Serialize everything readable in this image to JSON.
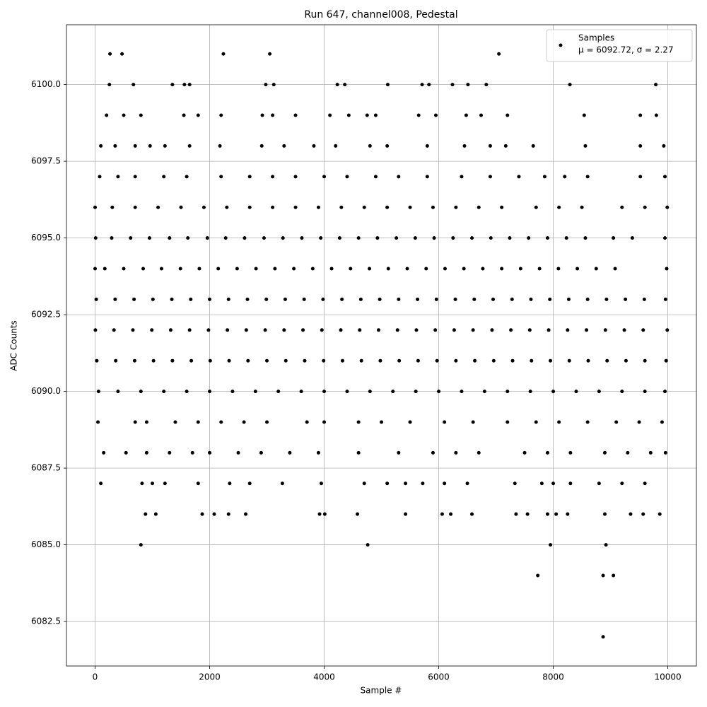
{
  "chart_data": {
    "type": "scatter",
    "title": "Run 647, channel008, Pedestal",
    "x_label": "Sample #",
    "y_label": "ADC Counts",
    "xlim": [
      -500,
      10499
    ],
    "ylim": [
      6081.05,
      6101.95
    ],
    "xticks": [
      0,
      2000,
      4000,
      6000,
      8000,
      10000
    ],
    "yticks": [
      6082.5,
      {
        "value": 6085,
        "label": "6085.0"
      },
      6087.5,
      {
        "value": 6090,
        "label": "6090.0"
      },
      6092.5,
      {
        "value": 6095,
        "label": "6095.0"
      },
      6097.5,
      {
        "value": 6100,
        "label": "6100.0"
      }
    ],
    "grid": true,
    "legend": "upper right",
    "legend_stats": "μ = 6092.72, σ = 2.27",
    "x": [
      10,
      290,
      620,
      950,
      1300,
      1620,
      1960,
      2280,
      2610,
      2950,
      3280,
      3610,
      3940,
      4270,
      4600,
      4930,
      5260,
      5590,
      5920,
      6250,
      6580,
      6910,
      7240,
      7570,
      7900,
      8230,
      8560,
      9050,
      9380,
      9950,
      0,
      170,
      500,
      840,
      1160,
      1490,
      1820,
      2150,
      2480,
      2810,
      3140,
      3470,
      3800,
      4130,
      4460,
      4790,
      5120,
      5450,
      5780,
      6110,
      6440,
      6770,
      7100,
      7430,
      7760,
      8090,
      8420,
      8750,
      9080,
      9980,
      20,
      350,
      680,
      1010,
      1340,
      1670,
      2000,
      2330,
      2660,
      2990,
      3320,
      3650,
      3980,
      4310,
      4640,
      4970,
      5300,
      5630,
      5960,
      6290,
      6620,
      6950,
      7280,
      7610,
      7940,
      8270,
      8600,
      8930,
      9260,
      9590,
      9960,
      5,
      330,
      660,
      990,
      1320,
      1650,
      1980,
      2310,
      2640,
      2970,
      3300,
      3630,
      3960,
      4290,
      4620,
      4950,
      5280,
      5610,
      5940,
      6270,
      6600,
      6930,
      7260,
      7590,
      7920,
      8250,
      8580,
      8910,
      9240,
      9570,
      9990,
      30,
      360,
      690,
      1020,
      1350,
      1680,
      2010,
      2340,
      2670,
      3000,
      3330,
      3660,
      3990,
      4320,
      4650,
      4980,
      5310,
      5640,
      5970,
      6300,
      6630,
      6960,
      7290,
      7620,
      7950,
      8280,
      8610,
      8940,
      9270,
      9600,
      9970,
      60,
      400,
      800,
      1200,
      1600,
      2000,
      2400,
      2800,
      3200,
      3600,
      4000,
      4400,
      4800,
      5200,
      5600,
      6000,
      6400,
      6800,
      7200,
      7600,
      8000,
      8400,
      8800,
      9200,
      9600,
      9950,
      0,
      300,
      700,
      1100,
      1500,
      1900,
      2300,
      2700,
      3100,
      3500,
      3900,
      4300,
      4700,
      5100,
      5500,
      5900,
      6300,
      6700,
      7100,
      7700,
      8100,
      8500,
      9200,
      9600,
      9990,
      50,
      700,
      900,
      1400,
      1800,
      2200,
      2600,
      3000,
      3700,
      4000,
      4600,
      5000,
      5500,
      6100,
      6600,
      7200,
      7700,
      8100,
      8600,
      9100,
      9500,
      9900,
      80,
      400,
      700,
      1200,
      1600,
      2200,
      2700,
      3100,
      3500,
      4000,
      4400,
      4900,
      5300,
      5800,
      6400,
      6900,
      7400,
      7850,
      8200,
      8600,
      9520,
      9950,
      150,
      540,
      900,
      1300,
      1700,
      2000,
      2500,
      2900,
      3400,
      3900,
      4600,
      5300,
      5900,
      6300,
      6700,
      7500,
      7900,
      8300,
      8900,
      9300,
      9700,
      9960,
      100,
      350,
      700,
      960,
      1220,
      1650,
      2180,
      2910,
      3300,
      3820,
      4200,
      4800,
      5100,
      5800,
      6450,
      6900,
      7170,
      7650,
      8560,
      9520,
      9930,
      100,
      820,
      1000,
      1220,
      1800,
      2350,
      2700,
      3270,
      3950,
      4700,
      5100,
      5420,
      5720,
      6100,
      6500,
      7330,
      7800,
      8000,
      8300,
      8800,
      9200,
      9600,
      200,
      500,
      800,
      1550,
      1800,
      2200,
      2920,
      3100,
      3500,
      4100,
      4430,
      4750,
      4900,
      5650,
      5950,
      6480,
      6740,
      7200,
      8540,
      9520,
      9800,
      880,
      1060,
      1870,
      2080,
      2330,
      2630,
      3920,
      4010,
      4580,
      5420,
      6060,
      6210,
      6580,
      7350,
      7550,
      7900,
      8050,
      8250,
      8900,
      9350,
      9570,
      9860,
      250,
      670,
      1350,
      1560,
      1650,
      2980,
      3120,
      4230,
      4360,
      5110,
      5710,
      5830,
      6240,
      6510,
      6830,
      8290,
      9790,
      260,
      470,
      2240,
      3050,
      7050,
      800,
      4760,
      7950,
      8920,
      7730,
      8870,
      9050,
      8870
    ],
    "series": [
      {
        "name": "Samples",
        "color": "#000000",
        "values": [
          6095,
          6095,
          6095,
          6095,
          6095,
          6095,
          6095,
          6095,
          6095,
          6095,
          6095,
          6095,
          6095,
          6095,
          6095,
          6095,
          6095,
          6095,
          6095,
          6095,
          6095,
          6095,
          6095,
          6095,
          6095,
          6095,
          6095,
          6095,
          6095,
          6095,
          6094,
          6094,
          6094,
          6094,
          6094,
          6094,
          6094,
          6094,
          6094,
          6094,
          6094,
          6094,
          6094,
          6094,
          6094,
          6094,
          6094,
          6094,
          6094,
          6094,
          6094,
          6094,
          6094,
          6094,
          6094,
          6094,
          6094,
          6094,
          6094,
          6094,
          6093,
          6093,
          6093,
          6093,
          6093,
          6093,
          6093,
          6093,
          6093,
          6093,
          6093,
          6093,
          6093,
          6093,
          6093,
          6093,
          6093,
          6093,
          6093,
          6093,
          6093,
          6093,
          6093,
          6093,
          6093,
          6093,
          6093,
          6093,
          6093,
          6093,
          6093,
          6092,
          6092,
          6092,
          6092,
          6092,
          6092,
          6092,
          6092,
          6092,
          6092,
          6092,
          6092,
          6092,
          6092,
          6092,
          6092,
          6092,
          6092,
          6092,
          6092,
          6092,
          6092,
          6092,
          6092,
          6092,
          6092,
          6092,
          6092,
          6092,
          6092,
          6092,
          6091,
          6091,
          6091,
          6091,
          6091,
          6091,
          6091,
          6091,
          6091,
          6091,
          6091,
          6091,
          6091,
          6091,
          6091,
          6091,
          6091,
          6091,
          6091,
          6091,
          6091,
          6091,
          6091,
          6091,
          6091,
          6091,
          6091,
          6091,
          6091,
          6091,
          6091,
          6090,
          6090,
          6090,
          6090,
          6090,
          6090,
          6090,
          6090,
          6090,
          6090,
          6090,
          6090,
          6090,
          6090,
          6090,
          6090,
          6090,
          6090,
          6090,
          6090,
          6090,
          6090,
          6090,
          6090,
          6090,
          6090,
          6096,
          6096,
          6096,
          6096,
          6096,
          6096,
          6096,
          6096,
          6096,
          6096,
          6096,
          6096,
          6096,
          6096,
          6096,
          6096,
          6096,
          6096,
          6096,
          6096,
          6096,
          6096,
          6096,
          6096,
          6096,
          6089,
          6089,
          6089,
          6089,
          6089,
          6089,
          6089,
          6089,
          6089,
          6089,
          6089,
          6089,
          6089,
          6089,
          6089,
          6089,
          6089,
          6089,
          6089,
          6089,
          6089,
          6089,
          6097,
          6097,
          6097,
          6097,
          6097,
          6097,
          6097,
          6097,
          6097,
          6097,
          6097,
          6097,
          6097,
          6097,
          6097,
          6097,
          6097,
          6097,
          6097,
          6097,
          6097,
          6097,
          6088,
          6088,
          6088,
          6088,
          6088,
          6088,
          6088,
          6088,
          6088,
          6088,
          6088,
          6088,
          6088,
          6088,
          6088,
          6088,
          6088,
          6088,
          6088,
          6088,
          6088,
          6088,
          6098,
          6098,
          6098,
          6098,
          6098,
          6098,
          6098,
          6098,
          6098,
          6098,
          6098,
          6098,
          6098,
          6098,
          6098,
          6098,
          6098,
          6098,
          6098,
          6098,
          6098,
          6087,
          6087,
          6087,
          6087,
          6087,
          6087,
          6087,
          6087,
          6087,
          6087,
          6087,
          6087,
          6087,
          6087,
          6087,
          6087,
          6087,
          6087,
          6087,
          6087,
          6087,
          6087,
          6099,
          6099,
          6099,
          6099,
          6099,
          6099,
          6099,
          6099,
          6099,
          6099,
          6099,
          6099,
          6099,
          6099,
          6099,
          6099,
          6099,
          6099,
          6099,
          6099,
          6099,
          6086,
          6086,
          6086,
          6086,
          6086,
          6086,
          6086,
          6086,
          6086,
          6086,
          6086,
          6086,
          6086,
          6086,
          6086,
          6086,
          6086,
          6086,
          6086,
          6086,
          6086,
          6086,
          6100,
          6100,
          6100,
          6100,
          6100,
          6100,
          6100,
          6100,
          6100,
          6100,
          6100,
          6100,
          6100,
          6100,
          6100,
          6100,
          6100,
          6101,
          6101,
          6101,
          6101,
          6101,
          6085,
          6085,
          6085,
          6085,
          6084,
          6084,
          6084,
          6082
        ]
      }
    ]
  }
}
